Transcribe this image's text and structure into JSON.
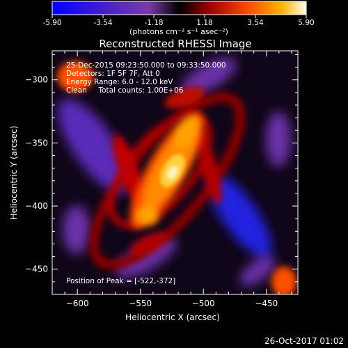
{
  "colorbar": {
    "tick_labels": [
      "-5.90",
      "-3.54",
      "-1.18",
      "1.18",
      "3.54",
      "5.90"
    ],
    "min": -5.9,
    "max": 5.9,
    "unit_label": "(photons cm⁻² s⁻¹ asec⁻²)"
  },
  "image": {
    "title": "Reconstructed RHESSI Image",
    "info_lines": [
      "25-Dec-2015 09:23:50.000 to 09:33:50.000",
      "Detectors: 1F 5F 7F, Att 0",
      "Energy Range: 6.0 - 12.0 keV",
      "Clean     Total counts: 1.00E+06"
    ],
    "peak_label": "Position of Peak = [-522,-372]",
    "footer_date": "26-Oct-2017 01:02"
  },
  "colors": {
    "background": "#000000",
    "text": "#ffffff",
    "colormap_negative": [
      "#0000ff",
      "#5a1fb0",
      "#7a3aa8",
      "#000000"
    ],
    "colormap_positive": [
      "#000000",
      "#b00000",
      "#ff5000",
      "#ffc000",
      "#ffffe0"
    ]
  },
  "chart_data": {
    "type": "heatmap",
    "title": "Reconstructed RHESSI Image",
    "xlabel": "Heliocentric X (arcsec)",
    "ylabel": "Heliocentric Y (arcsec)",
    "xlim": [
      -620,
      -425
    ],
    "ylim": [
      -470,
      -277
    ],
    "x_ticks": [
      -600,
      -550,
      -500,
      -450
    ],
    "y_ticks": [
      -450,
      -400,
      -350,
      -300
    ],
    "x_tick_labels": [
      "−600",
      "−550",
      "−500",
      "−450"
    ],
    "y_tick_labels": [
      "−450",
      "−400",
      "−350",
      "−300"
    ],
    "peak": {
      "x": -522,
      "y": -372,
      "value": 5.9
    },
    "value_range": [
      -5.9,
      5.9
    ]
  }
}
